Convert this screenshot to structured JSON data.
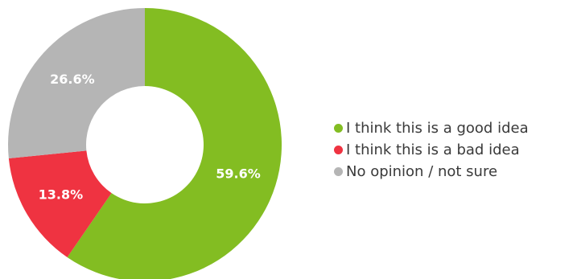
{
  "chart_data": {
    "type": "pie",
    "categories": [
      "I think this is a good idea",
      "I think this is a bad idea",
      "No opinion / not sure"
    ],
    "values": [
      59.6,
      13.8,
      26.6
    ],
    "labels": [
      "59.6%",
      "13.8%",
      "26.6%"
    ],
    "colors": [
      "#83bd22",
      "#ef3341",
      "#b5b5b5"
    ],
    "legend_position": "right"
  }
}
